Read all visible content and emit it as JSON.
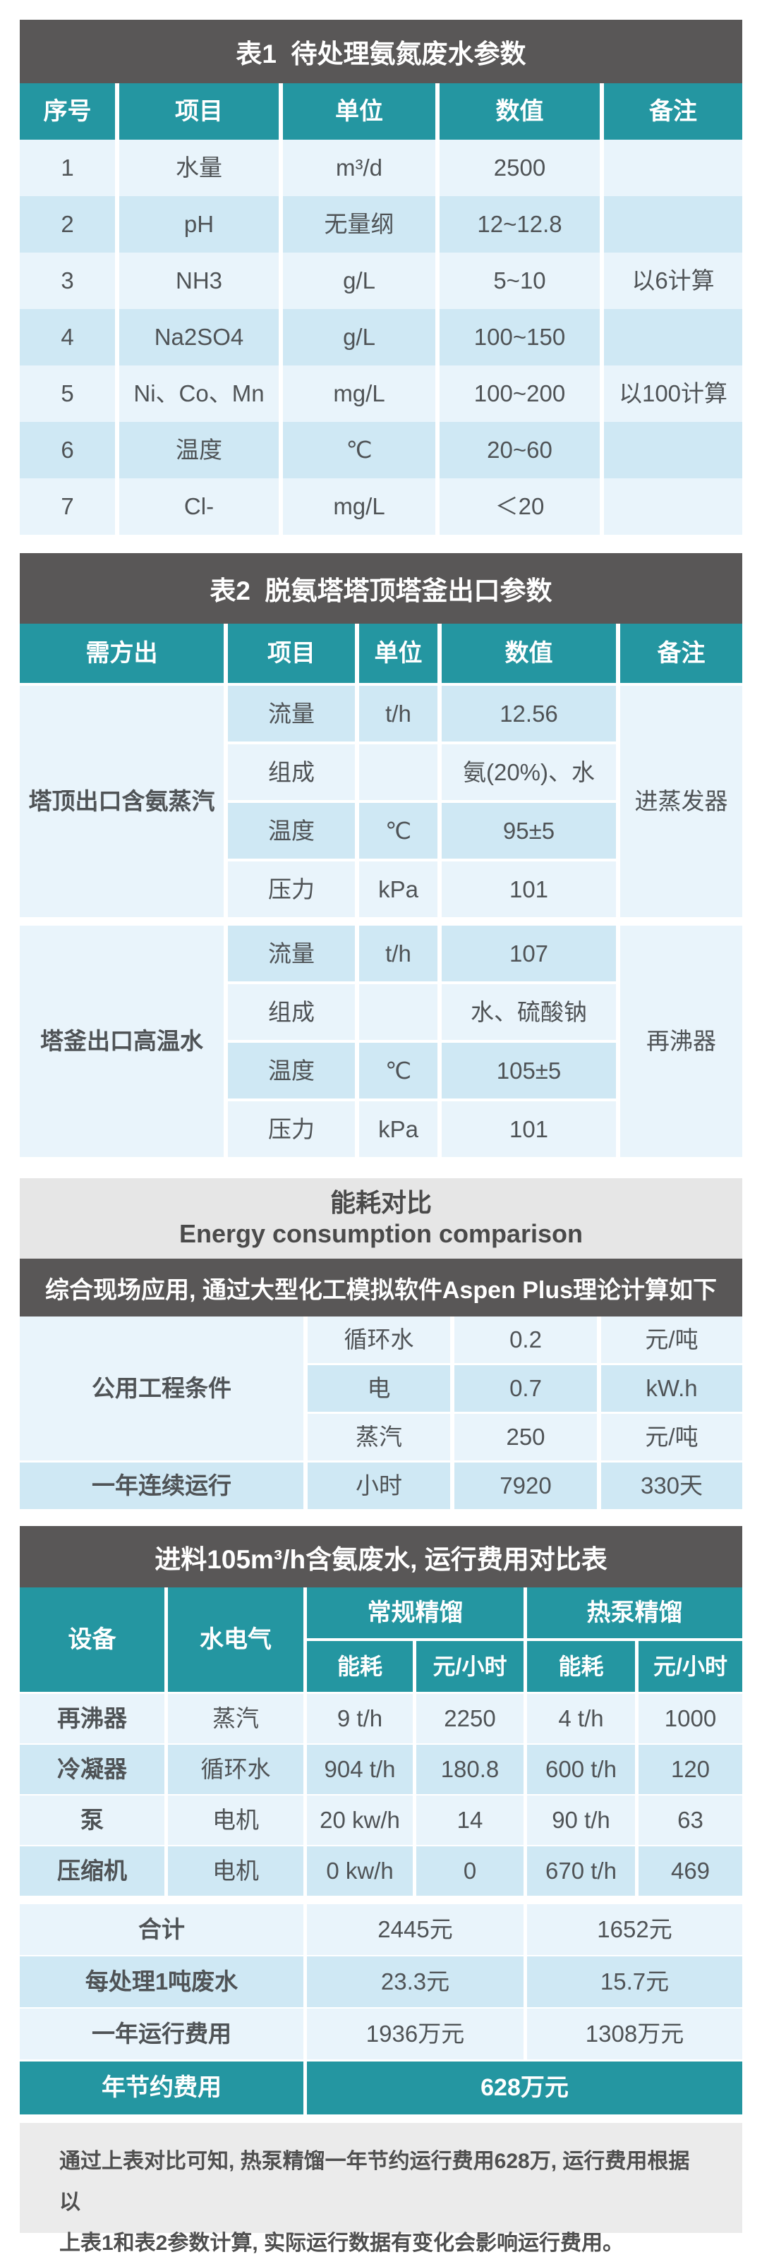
{
  "colors": {
    "teal": "#2496A1",
    "dark_gray": "#595757",
    "row_light": "#E9F4FB",
    "row_dark": "#CFE8F4",
    "section_gray": "#E6E6E6",
    "footer_gray": "#EBEBEB"
  },
  "table1": {
    "title": "表1  待处理氨氮废水参数",
    "headers": [
      "序号",
      "项目",
      "单位",
      "数值",
      "备注"
    ],
    "rows": [
      [
        "1",
        "水量",
        "m³/d",
        "2500",
        ""
      ],
      [
        "2",
        "pH",
        "无量纲",
        "12~12.8",
        ""
      ],
      [
        "3",
        "NH3",
        "g/L",
        "5~10",
        "以6计算"
      ],
      [
        "4",
        "Na2SO4",
        "g/L",
        "100~150",
        ""
      ],
      [
        "5",
        "Ni、Co、Mn",
        "mg/L",
        "100~200",
        "以100计算"
      ],
      [
        "6",
        "温度",
        "℃",
        "20~60",
        ""
      ],
      [
        "7",
        "Cl-",
        "mg/L",
        "＜20",
        ""
      ]
    ]
  },
  "table2": {
    "title": "表2  脱氨塔塔顶塔釜出口参数",
    "headers": [
      "需方出",
      "项目",
      "单位",
      "数值",
      "备注"
    ],
    "groups": [
      {
        "name": "塔顶出口含氨蒸汽",
        "remark": "进蒸发器",
        "rows": [
          [
            "流量",
            "t/h",
            "12.56"
          ],
          [
            "组成",
            "",
            "氨(20%)、水"
          ],
          [
            "温度",
            "℃",
            "95±5"
          ],
          [
            "压力",
            "kPa",
            "101"
          ]
        ]
      },
      {
        "name": "塔釜出口高温水",
        "remark": "再沸器",
        "rows": [
          [
            "流量",
            "t/h",
            "107"
          ],
          [
            "组成",
            "",
            "水、硫酸钠"
          ],
          [
            "温度",
            "℃",
            "105±5"
          ],
          [
            "压力",
            "kPa",
            "101"
          ]
        ]
      }
    ]
  },
  "table3": {
    "title_zh": "能耗对比",
    "title_en": "Energy consumption comparison",
    "banner": "综合现场应用, 通过大型化工模拟软件Aspen Plus理论计算如下",
    "group_label": "公用工程条件",
    "rows": [
      [
        "循环水",
        "0.2",
        "元/吨"
      ],
      [
        "电",
        "0.7",
        "kW.h"
      ],
      [
        "蒸汽",
        "250",
        "元/吨"
      ]
    ],
    "last_row": [
      "一年连续运行",
      "小时",
      "7920",
      "330天"
    ]
  },
  "table4": {
    "title": "进料105m³/h含氨废水, 运行费用对比表",
    "headers": {
      "device": "设备",
      "utility": "水电气",
      "conventional": "常规精馏",
      "heat_pump": "热泵精馏",
      "energy": "能耗",
      "cost": "元/小时"
    },
    "rows": [
      [
        "再沸器",
        "蒸汽",
        "9 t/h",
        "2250",
        "4 t/h",
        "1000"
      ],
      [
        "冷凝器",
        "循环水",
        "904 t/h",
        "180.8",
        "600 t/h",
        "120"
      ],
      [
        "泵",
        "电机",
        "20 kw/h",
        "14",
        "90 t/h",
        "63"
      ],
      [
        "压缩机",
        "电机",
        "0 kw/h",
        "0",
        "670 t/h",
        "469"
      ]
    ],
    "summary": [
      [
        "合计",
        "2445元",
        "1652元"
      ],
      [
        "每处理1吨废水",
        "23.3元",
        "15.7元"
      ],
      [
        "一年运行费用",
        "1936万元",
        "1308万元"
      ]
    ],
    "total": {
      "label": "年节约费用",
      "value": "628万元"
    }
  },
  "footer": {
    "line1": "通过上表对比可知, 热泵精馏一年节约运行费用628万, 运行费用根据以",
    "line2": "上表1和表2参数计算, 实际运行数据有变化会影响运行费用。"
  }
}
